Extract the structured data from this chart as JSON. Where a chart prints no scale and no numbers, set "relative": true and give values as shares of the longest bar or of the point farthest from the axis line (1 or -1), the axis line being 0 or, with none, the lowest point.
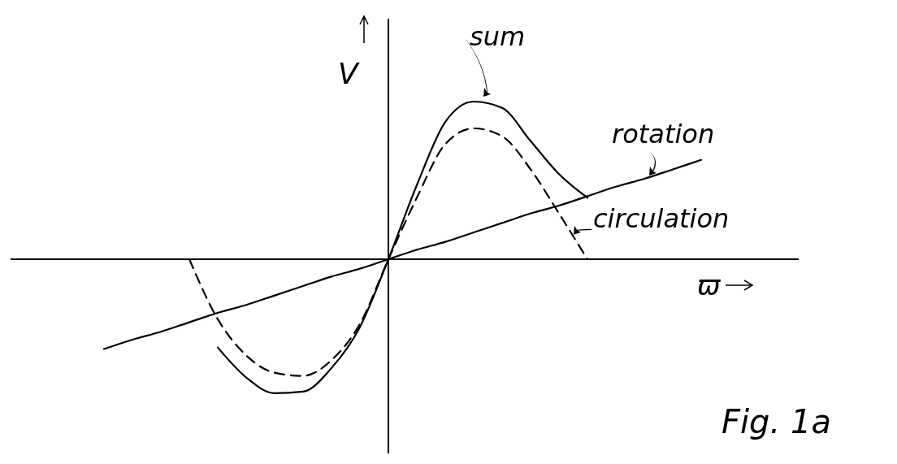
{
  "chart_data": {
    "type": "line",
    "relative": true,
    "xlabel": "ϖ",
    "ylabel": "V",
    "annotations": [
      "Fig. 1a"
    ],
    "marker": "none",
    "grid": false,
    "categories": [
      null,
      null,
      null,
      null,
      null,
      null,
      null,
      null,
      null,
      null,
      null,
      null,
      null,
      null,
      null,
      null,
      null,
      null,
      null,
      null,
      null,
      null,
      null,
      null,
      null,
      null,
      null,
      null
    ],
    "series": [
      {
        "name": "sum",
        "color": "#000000",
        "line_style": "solid",
        "values": [
          null,
          null,
          null,
          null,
          null,
          null,
          null,
          -0.56,
          -0.75,
          -0.85,
          -0.84,
          -0.69,
          -0.43,
          0,
          0.47,
          0.87,
          1,
          0.96,
          0.75,
          0.54,
          0.39,
          null,
          null,
          null,
          null,
          null,
          null,
          null
        ]
      },
      {
        "name": "rotation",
        "color": "#000000",
        "line_style": "solid",
        "values": [
          null,
          null,
          null,
          -0.57,
          -0.51,
          -0.46,
          -0.4,
          -0.34,
          -0.29,
          -0.23,
          -0.17,
          -0.11,
          -0.06,
          0,
          0.06,
          0.11,
          0.17,
          0.23,
          0.29,
          0.34,
          0.4,
          0.46,
          0.51,
          0.57,
          0.63,
          null,
          null,
          null
        ]
      },
      {
        "name": "circulation",
        "color": "#000000",
        "line_style": "dashed",
        "values": [
          null,
          null,
          null,
          null,
          null,
          null,
          0,
          -0.38,
          -0.61,
          -0.72,
          -0.74,
          -0.64,
          -0.41,
          0,
          0.39,
          0.73,
          0.83,
          0.78,
          0.57,
          0.29,
          0,
          null,
          null,
          null,
          null,
          null,
          null,
          null
        ]
      }
    ]
  }
}
